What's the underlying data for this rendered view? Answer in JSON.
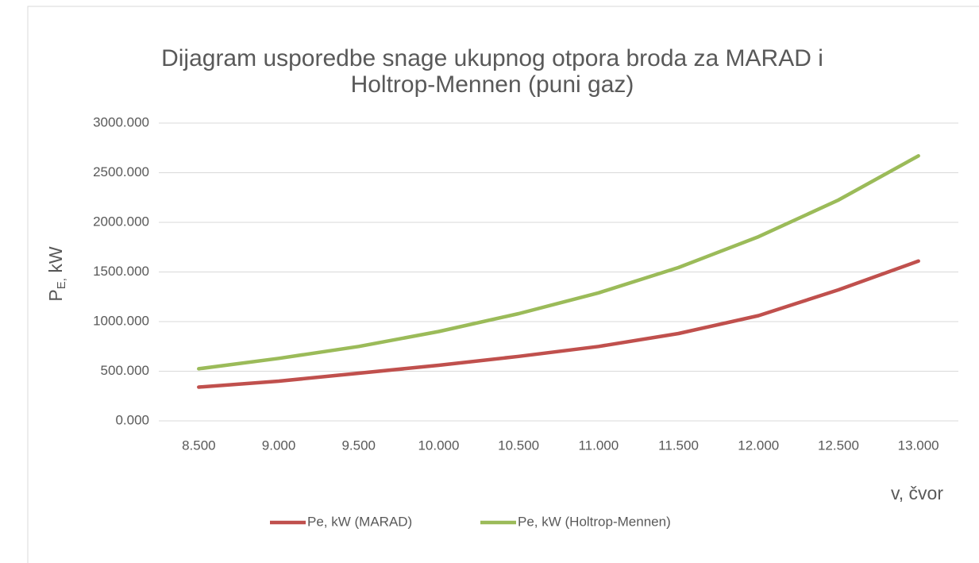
{
  "chart_data": {
    "type": "line",
    "title": [
      "Dijagram usporedbe snage ukupnog otpora broda za MARAD i",
      "Holtrop-Mennen (puni gaz)"
    ],
    "x_label": "v, čvor",
    "y_label": [
      "P",
      "E,",
      " kW"
    ],
    "categories": [
      "8.500",
      "9.000",
      "9.500",
      "10.000",
      "10.500",
      "11.000",
      "11.500",
      "12.000",
      "12.500",
      "13.000"
    ],
    "series": [
      {
        "name": "Pe, kW (MARAD)",
        "color": "#c0504d",
        "values": [
          340,
          400,
          480,
          560,
          650,
          750,
          880,
          1060,
          1320,
          1610
        ]
      },
      {
        "name": "Pe, kW (Holtrop-Mennen)",
        "color": "#9bbb59",
        "values": [
          525,
          630,
          750,
          900,
          1080,
          1290,
          1545,
          1855,
          2225,
          2670
        ]
      }
    ],
    "ylim": [
      0,
      3000
    ],
    "yticks": [
      {
        "value": 0,
        "label": "0.000"
      },
      {
        "value": 500,
        "label": "500.000"
      },
      {
        "value": 1000,
        "label": "1000.000"
      },
      {
        "value": 1500,
        "label": "1500.000"
      },
      {
        "value": 2000,
        "label": "2000.000"
      },
      {
        "value": 2500,
        "label": "2500.000"
      },
      {
        "value": 3000,
        "label": "3000.000"
      }
    ],
    "grid": true,
    "legend": "bottom"
  }
}
